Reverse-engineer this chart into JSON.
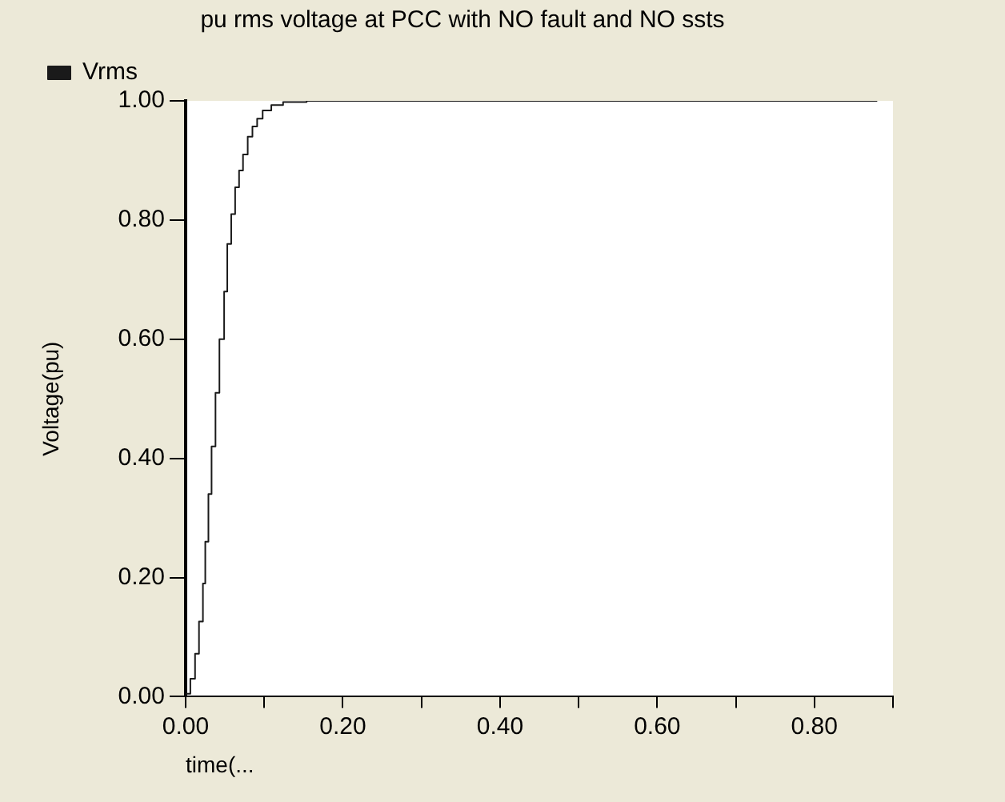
{
  "chart_data": {
    "type": "step",
    "title": "pu rms voltage at PCC with NO fault and NO ssts",
    "xlabel": "time(...",
    "ylabel": "Voltage(pu)",
    "series": [
      {
        "name": "Vrms",
        "color": "#1a1a1a",
        "x": [
          0,
          0.006,
          0.012,
          0.017,
          0.022,
          0.025,
          0.029,
          0.033,
          0.038,
          0.043,
          0.049,
          0.053,
          0.058,
          0.063,
          0.068,
          0.073,
          0.079,
          0.085,
          0.091,
          0.098,
          0.109,
          0.124,
          0.154,
          0.88
        ],
        "values": [
          0,
          0.005,
          0.03,
          0.072,
          0.126,
          0.19,
          0.26,
          0.34,
          0.42,
          0.51,
          0.6,
          0.68,
          0.76,
          0.81,
          0.855,
          0.883,
          0.91,
          0.94,
          0.957,
          0.97,
          0.984,
          0.993,
          0.998,
          1.0
        ]
      }
    ],
    "xlim": [
      0,
      0.9
    ],
    "xticks": [
      {
        "value": 0,
        "label": "0.00"
      },
      {
        "value": 0.1,
        "label": null
      },
      {
        "value": 0.2,
        "label": "0.20"
      },
      {
        "value": 0.3,
        "label": null
      },
      {
        "value": 0.4,
        "label": "0.40"
      },
      {
        "value": 0.5,
        "label": null
      },
      {
        "value": 0.6,
        "label": "0.60"
      },
      {
        "value": 0.7,
        "label": null
      },
      {
        "value": 0.8,
        "label": "0.80"
      },
      {
        "value": 0.9,
        "label": null
      }
    ],
    "ylim": [
      0,
      1
    ],
    "yticks": [
      {
        "value": 0,
        "label": "0.00"
      },
      {
        "value": 0.2,
        "label": "0.20"
      },
      {
        "value": 0.4,
        "label": "0.40"
      },
      {
        "value": 0.6,
        "label": "0.60"
      },
      {
        "value": 0.8,
        "label": "0.80"
      },
      {
        "value": 1,
        "label": "1.00"
      }
    ],
    "grid": false,
    "legend": "top left",
    "marker": "none",
    "line_style": "solid"
  }
}
